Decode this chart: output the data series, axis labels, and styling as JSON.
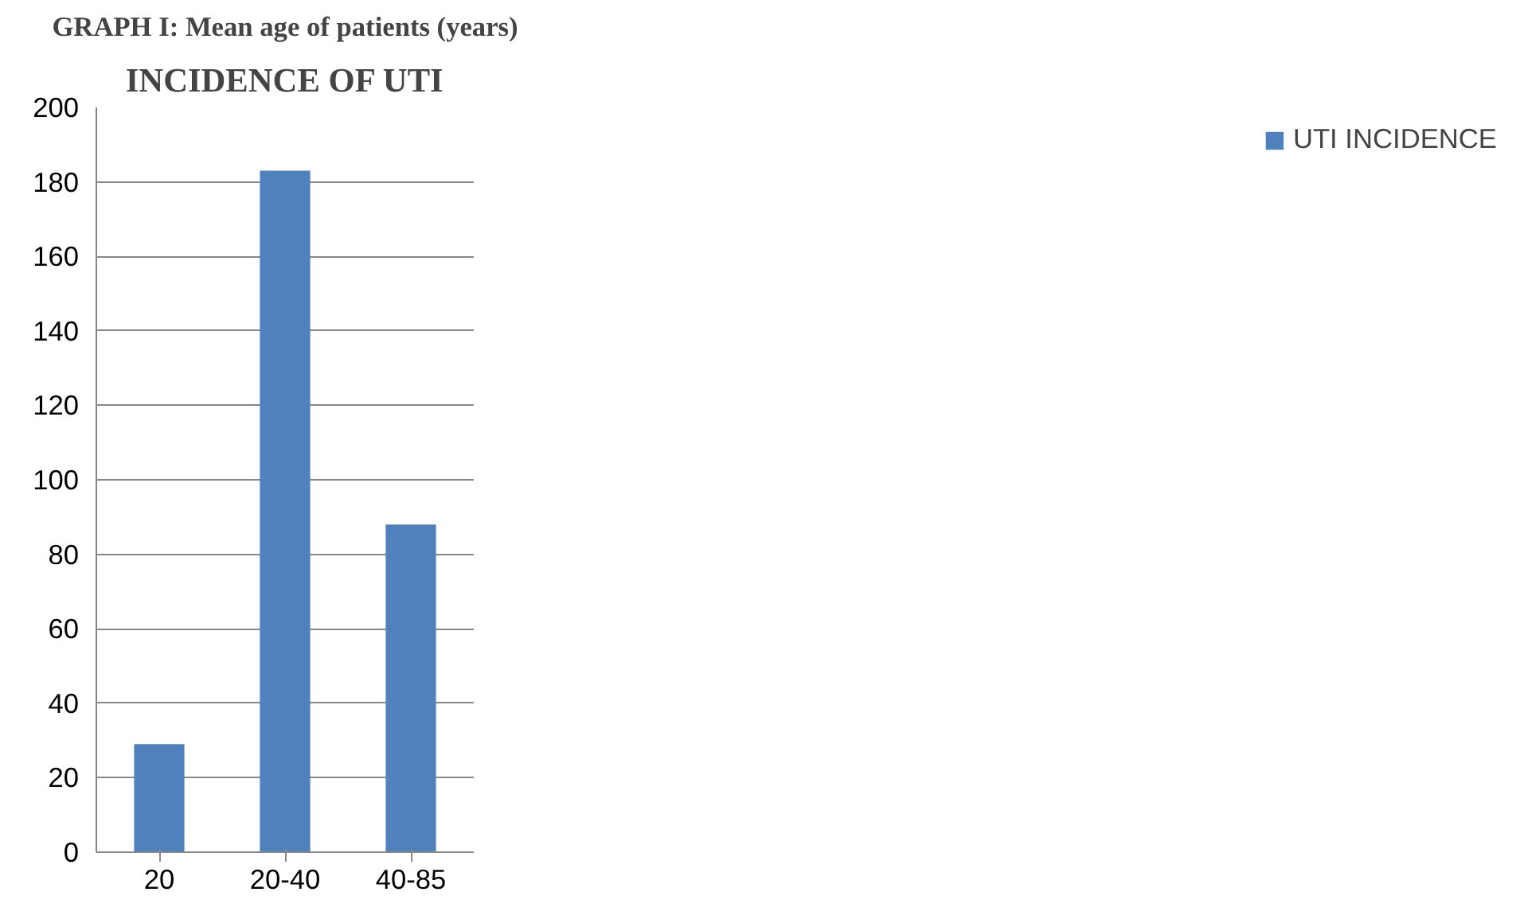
{
  "chart_data": {
    "type": "bar",
    "title": "INCIDENCE OF UTI",
    "subtitle": "GRAPH I: Mean age of patients (years)",
    "categories": [
      "20",
      "20-40",
      "40-85"
    ],
    "series": [
      {
        "name": "UTI INCIDENCE",
        "color": "#4f81bd",
        "values": [
          29,
          183,
          88
        ]
      }
    ],
    "ylim": [
      0,
      200
    ],
    "yticks": [
      0,
      20,
      40,
      60,
      80,
      100,
      120,
      140,
      160,
      180,
      200
    ],
    "grid": "y",
    "legend": "right"
  }
}
